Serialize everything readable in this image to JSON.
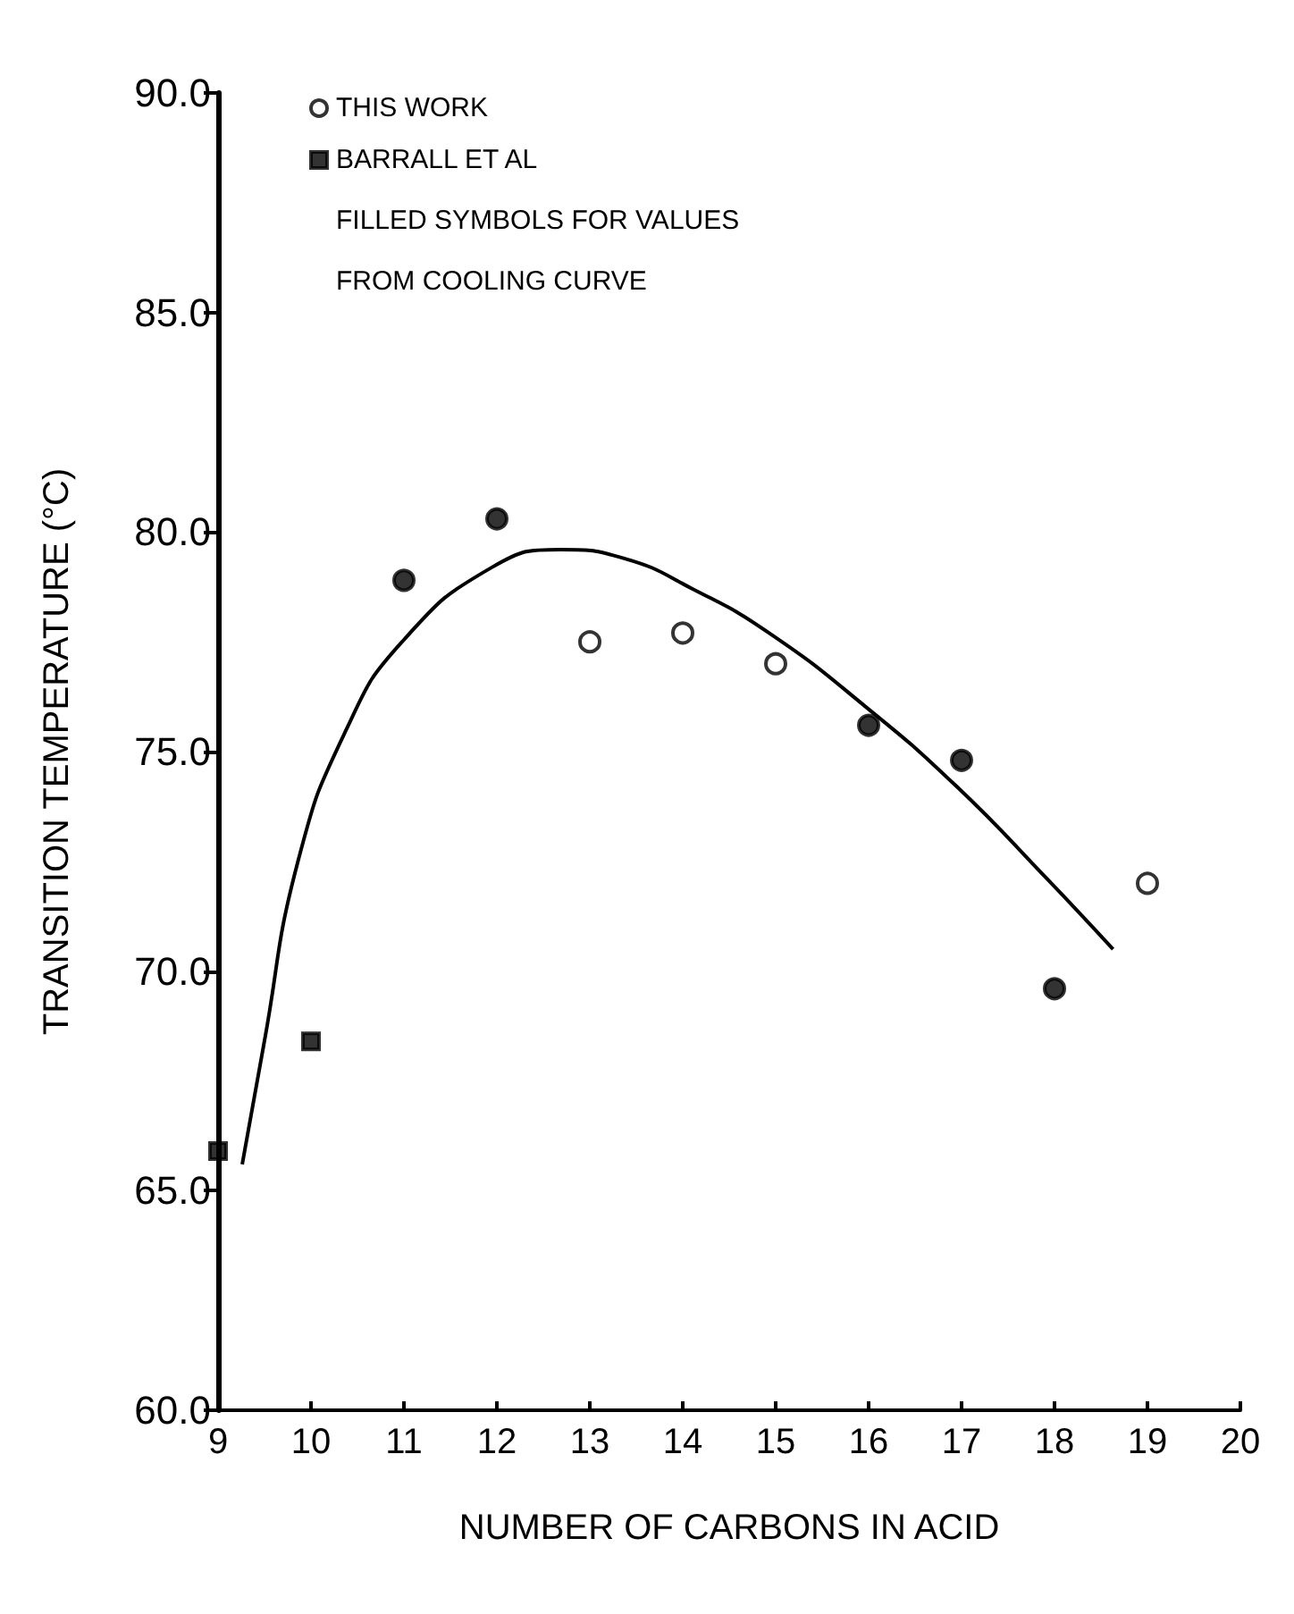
{
  "chart_data": {
    "type": "scatter",
    "xlabel": "NUMBER OF CARBONS IN ACID",
    "ylabel": "TRANSITION TEMPERATURE (°C)",
    "annotations": [
      "FILLED SYMBOLS FOR VALUES",
      "FROM COOLING CURVE"
    ],
    "xlim": [
      9,
      20
    ],
    "xticks": [
      9,
      10,
      11,
      12,
      13,
      14,
      15,
      16,
      17,
      18,
      19,
      20
    ],
    "ylim": [
      60,
      90
    ],
    "yticks": [
      {
        "value": 60,
        "label": "60.0"
      },
      {
        "value": 65,
        "label": "65.0"
      },
      {
        "value": 70,
        "label": "70.0"
      },
      {
        "value": 75,
        "label": "75.0"
      },
      {
        "value": 80,
        "label": "80.0"
      },
      {
        "value": 85,
        "label": "85.0"
      },
      {
        "value": 90,
        "label": "90.0"
      }
    ],
    "grid": false,
    "legend": "top left",
    "series": [
      {
        "name": "THIS WORK",
        "color": "#ffffff",
        "marker": "circle",
        "x": [
          13,
          14,
          15,
          19
        ],
        "values": [
          77.5,
          77.7,
          77.0,
          72.0
        ]
      },
      {
        "color": "#000000",
        "marker": "circle",
        "x": [
          11,
          12,
          16,
          17,
          18
        ],
        "values": [
          78.9,
          80.3,
          75.6,
          74.8,
          69.6
        ]
      },
      {
        "name": "BARRALL ET AL",
        "color": "#000000",
        "marker": "square",
        "x": [
          9,
          10
        ],
        "values": [
          65.9,
          68.4
        ]
      },
      {
        "type": "line",
        "color": "#000000",
        "marker": "none",
        "x": [
          9.26,
          9.49,
          9.86,
          10.38,
          10.98,
          11.95,
          12.69,
          13.37,
          14.11,
          14.93,
          15.98,
          16.95,
          17.92,
          18.63
        ],
        "values": [
          65.6,
          68.3,
          72.5,
          75.5,
          77.5,
          79.2,
          79.6,
          79.4,
          78.7,
          77.7,
          76.0,
          74.2,
          72.1,
          70.5
        ]
      }
    ]
  }
}
